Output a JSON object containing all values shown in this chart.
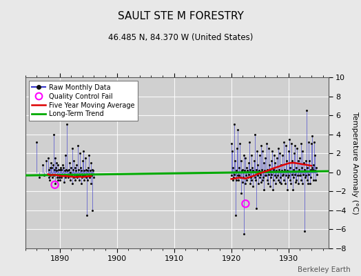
{
  "title": "SAULT STE M FORESTRY",
  "subtitle": "46.485 N, 84.370 W (United States)",
  "ylabel": "Temperature Anomaly (°C)",
  "watermark": "Berkeley Earth",
  "xlim": [
    1884,
    1937
  ],
  "ylim": [
    -8,
    10
  ],
  "yticks": [
    -8,
    -6,
    -4,
    -2,
    0,
    2,
    4,
    6,
    8,
    10
  ],
  "xticks": [
    1890,
    1900,
    1910,
    1920,
    1930
  ],
  "bg_color": "#e8e8e8",
  "plot_bg_color": "#d0d0d0",
  "raw_color": "#3333cc",
  "raw_color_alpha": 0.6,
  "raw_dot_color": "#111111",
  "moving_avg_color": "#dd0000",
  "trend_color": "#00aa00",
  "qc_fail_color": "#ff00ff",
  "raw_data_1": [
    [
      1886.0,
      3.2
    ],
    [
      1886.5,
      -0.5
    ],
    [
      1887.0,
      0.8
    ],
    [
      1887.3,
      -0.3
    ],
    [
      1887.6,
      1.2
    ],
    [
      1888.0,
      1.5
    ],
    [
      1888.08,
      -0.5
    ],
    [
      1888.17,
      0.3
    ],
    [
      1888.25,
      -0.8
    ],
    [
      1888.33,
      0.5
    ],
    [
      1888.42,
      -0.3
    ],
    [
      1888.5,
      1.0
    ],
    [
      1888.58,
      -0.2
    ],
    [
      1888.67,
      0.5
    ],
    [
      1888.75,
      -0.5
    ],
    [
      1888.83,
      0.8
    ],
    [
      1888.92,
      -0.3
    ],
    [
      1889.0,
      4.0
    ],
    [
      1889.08,
      0.3
    ],
    [
      1889.17,
      1.5
    ],
    [
      1889.25,
      -1.2
    ],
    [
      1889.33,
      0.5
    ],
    [
      1889.42,
      0.2
    ],
    [
      1889.5,
      1.0
    ],
    [
      1889.58,
      -0.5
    ],
    [
      1889.67,
      0.8
    ],
    [
      1889.75,
      -0.8
    ],
    [
      1889.83,
      0.3
    ],
    [
      1889.92,
      -0.5
    ],
    [
      1890.0,
      0.3
    ],
    [
      1890.08,
      -0.8
    ],
    [
      1890.17,
      0.5
    ],
    [
      1890.25,
      -0.5
    ],
    [
      1890.33,
      0.3
    ],
    [
      1890.42,
      -0.3
    ],
    [
      1890.5,
      0.8
    ],
    [
      1890.58,
      -0.2
    ],
    [
      1890.67,
      0.5
    ],
    [
      1890.75,
      -0.3
    ],
    [
      1890.83,
      -1.0
    ],
    [
      1890.92,
      0.2
    ],
    [
      1891.0,
      1.8
    ],
    [
      1891.08,
      -0.5
    ],
    [
      1891.17,
      0.3
    ],
    [
      1891.25,
      5.1
    ],
    [
      1891.33,
      -0.3
    ],
    [
      1891.42,
      0.2
    ],
    [
      1891.5,
      -0.5
    ],
    [
      1891.58,
      0.3
    ],
    [
      1891.67,
      -0.2
    ],
    [
      1891.75,
      1.0
    ],
    [
      1891.83,
      -0.8
    ],
    [
      1891.92,
      0.0
    ],
    [
      1892.0,
      0.5
    ],
    [
      1892.08,
      -0.3
    ],
    [
      1892.17,
      2.5
    ],
    [
      1892.25,
      -1.2
    ],
    [
      1892.33,
      0.3
    ],
    [
      1892.42,
      -0.5
    ],
    [
      1892.5,
      1.2
    ],
    [
      1892.58,
      -0.2
    ],
    [
      1892.67,
      0.5
    ],
    [
      1892.75,
      -0.8
    ],
    [
      1892.83,
      0.2
    ],
    [
      1892.92,
      -0.3
    ],
    [
      1893.0,
      0.8
    ],
    [
      1893.08,
      -0.5
    ],
    [
      1893.17,
      2.8
    ],
    [
      1893.25,
      -0.3
    ],
    [
      1893.33,
      0.3
    ],
    [
      1893.42,
      -0.8
    ],
    [
      1893.5,
      2.0
    ],
    [
      1893.58,
      -0.3
    ],
    [
      1893.67,
      0.5
    ],
    [
      1893.75,
      -1.2
    ],
    [
      1893.83,
      0.2
    ],
    [
      1893.92,
      -0.5
    ],
    [
      1894.0,
      1.2
    ],
    [
      1894.08,
      -0.3
    ],
    [
      1894.17,
      2.2
    ],
    [
      1894.25,
      -0.8
    ],
    [
      1894.33,
      0.2
    ],
    [
      1894.42,
      -0.3
    ],
    [
      1894.5,
      1.5
    ],
    [
      1894.58,
      -0.5
    ],
    [
      1894.67,
      0.3
    ],
    [
      1894.75,
      -4.5
    ],
    [
      1894.83,
      0.2
    ],
    [
      1894.92,
      -0.8
    ],
    [
      1895.0,
      0.5
    ],
    [
      1895.08,
      -0.3
    ],
    [
      1895.17,
      1.8
    ],
    [
      1895.25,
      -0.5
    ],
    [
      1895.33,
      0.2
    ],
    [
      1895.42,
      -1.2
    ],
    [
      1895.5,
      1.0
    ],
    [
      1895.58,
      -0.3
    ],
    [
      1895.67,
      0.3
    ],
    [
      1895.75,
      -4.0
    ],
    [
      1895.83,
      0.2
    ],
    [
      1895.92,
      -0.5
    ]
  ],
  "raw_data_2": [
    [
      1920.0,
      3.0
    ],
    [
      1920.08,
      -0.3
    ],
    [
      1920.17,
      2.2
    ],
    [
      1920.25,
      -0.8
    ],
    [
      1920.33,
      0.5
    ],
    [
      1920.42,
      -0.5
    ],
    [
      1920.5,
      5.1
    ],
    [
      1920.58,
      -0.2
    ],
    [
      1920.67,
      1.2
    ],
    [
      1920.75,
      -4.5
    ],
    [
      1920.83,
      0.2
    ],
    [
      1920.92,
      -0.8
    ],
    [
      1921.0,
      2.5
    ],
    [
      1921.08,
      -0.3
    ],
    [
      1921.17,
      4.5
    ],
    [
      1921.25,
      -0.8
    ],
    [
      1921.33,
      0.5
    ],
    [
      1921.42,
      -0.3
    ],
    [
      1921.5,
      3.0
    ],
    [
      1921.58,
      -0.5
    ],
    [
      1921.67,
      1.2
    ],
    [
      1921.75,
      -2.2
    ],
    [
      1921.83,
      0.2
    ],
    [
      1921.92,
      -1.0
    ],
    [
      1922.0,
      0.3
    ],
    [
      1922.08,
      -0.5
    ],
    [
      1922.17,
      1.8
    ],
    [
      1922.25,
      -6.5
    ],
    [
      1922.33,
      0.2
    ],
    [
      1922.42,
      -1.2
    ],
    [
      1922.5,
      1.5
    ],
    [
      1922.58,
      -0.3
    ],
    [
      1922.67,
      0.5
    ],
    [
      1922.75,
      -0.8
    ],
    [
      1922.83,
      0.2
    ],
    [
      1922.92,
      -0.5
    ],
    [
      1923.0,
      1.0
    ],
    [
      1923.08,
      -0.2
    ],
    [
      1923.17,
      3.2
    ],
    [
      1923.25,
      -1.2
    ],
    [
      1923.33,
      0.3
    ],
    [
      1923.42,
      -0.5
    ],
    [
      1923.5,
      1.8
    ],
    [
      1923.58,
      -0.8
    ],
    [
      1923.67,
      0.5
    ],
    [
      1923.75,
      -1.5
    ],
    [
      1923.83,
      0.2
    ],
    [
      1923.92,
      -0.3
    ],
    [
      1924.0,
      1.2
    ],
    [
      1924.08,
      -0.5
    ],
    [
      1924.17,
      4.0
    ],
    [
      1924.25,
      -0.8
    ],
    [
      1924.33,
      0.3
    ],
    [
      1924.42,
      -3.8
    ],
    [
      1924.5,
      2.2
    ],
    [
      1924.58,
      -0.3
    ],
    [
      1924.67,
      0.8
    ],
    [
      1924.75,
      -1.2
    ],
    [
      1924.83,
      0.2
    ],
    [
      1924.92,
      -0.5
    ],
    [
      1925.0,
      1.8
    ],
    [
      1925.08,
      -0.2
    ],
    [
      1925.17,
      2.8
    ],
    [
      1925.25,
      -1.0
    ],
    [
      1925.33,
      0.3
    ],
    [
      1925.42,
      -0.8
    ],
    [
      1925.5,
      2.2
    ],
    [
      1925.58,
      -0.5
    ],
    [
      1925.67,
      1.0
    ],
    [
      1925.75,
      -1.8
    ],
    [
      1925.83,
      0.2
    ],
    [
      1925.92,
      -0.3
    ],
    [
      1926.0,
      1.5
    ],
    [
      1926.08,
      -0.3
    ],
    [
      1926.17,
      3.0
    ],
    [
      1926.25,
      -0.8
    ],
    [
      1926.33,
      0.3
    ],
    [
      1926.42,
      -1.2
    ],
    [
      1926.5,
      2.5
    ],
    [
      1926.58,
      -0.2
    ],
    [
      1926.67,
      0.8
    ],
    [
      1926.75,
      -1.5
    ],
    [
      1926.83,
      0.2
    ],
    [
      1926.92,
      -0.5
    ],
    [
      1927.0,
      1.2
    ],
    [
      1927.08,
      -0.2
    ],
    [
      1927.17,
      2.2
    ],
    [
      1927.25,
      -1.8
    ],
    [
      1927.33,
      0.3
    ],
    [
      1927.42,
      -0.8
    ],
    [
      1927.5,
      1.8
    ],
    [
      1927.58,
      -0.3
    ],
    [
      1927.67,
      1.0
    ],
    [
      1927.75,
      -1.2
    ],
    [
      1927.83,
      0.2
    ],
    [
      1927.92,
      -0.5
    ],
    [
      1928.0,
      1.5
    ],
    [
      1928.08,
      -0.3
    ],
    [
      1928.17,
      2.5
    ],
    [
      1928.25,
      -0.8
    ],
    [
      1928.33,
      0.3
    ],
    [
      1928.42,
      -1.0
    ],
    [
      1928.5,
      2.0
    ],
    [
      1928.58,
      -0.5
    ],
    [
      1928.67,
      0.8
    ],
    [
      1928.75,
      -1.2
    ],
    [
      1928.83,
      0.2
    ],
    [
      1928.92,
      -0.3
    ],
    [
      1929.0,
      1.8
    ],
    [
      1929.08,
      -0.2
    ],
    [
      1929.17,
      3.2
    ],
    [
      1929.25,
      -0.8
    ],
    [
      1929.33,
      0.3
    ],
    [
      1929.42,
      -1.2
    ],
    [
      1929.5,
      2.8
    ],
    [
      1929.58,
      -0.3
    ],
    [
      1929.67,
      1.2
    ],
    [
      1929.75,
      -1.8
    ],
    [
      1929.83,
      0.2
    ],
    [
      1929.92,
      -0.5
    ],
    [
      1930.0,
      2.2
    ],
    [
      1930.08,
      -0.3
    ],
    [
      1930.17,
      3.5
    ],
    [
      1930.25,
      -0.8
    ],
    [
      1930.33,
      0.5
    ],
    [
      1930.42,
      -1.2
    ],
    [
      1930.5,
      3.0
    ],
    [
      1930.58,
      -0.2
    ],
    [
      1930.67,
      1.2
    ],
    [
      1930.75,
      -1.8
    ],
    [
      1930.83,
      0.3
    ],
    [
      1930.92,
      -0.5
    ],
    [
      1931.0,
      2.0
    ],
    [
      1931.08,
      -0.2
    ],
    [
      1931.17,
      2.8
    ],
    [
      1931.25,
      -1.0
    ],
    [
      1931.33,
      0.5
    ],
    [
      1931.42,
      -0.8
    ],
    [
      1931.5,
      2.5
    ],
    [
      1931.58,
      -0.3
    ],
    [
      1931.67,
      1.2
    ],
    [
      1931.75,
      -1.2
    ],
    [
      1931.83,
      0.3
    ],
    [
      1931.92,
      -0.3
    ],
    [
      1932.0,
      1.5
    ],
    [
      1932.08,
      -0.3
    ],
    [
      1932.17,
      3.0
    ],
    [
      1932.25,
      -0.8
    ],
    [
      1932.33,
      0.5
    ],
    [
      1932.42,
      -1.2
    ],
    [
      1932.5,
      2.2
    ],
    [
      1932.58,
      -0.2
    ],
    [
      1932.67,
      1.0
    ],
    [
      1932.75,
      -6.2
    ],
    [
      1932.83,
      0.3
    ],
    [
      1932.92,
      -0.5
    ],
    [
      1933.0,
      1.2
    ],
    [
      1933.08,
      -0.3
    ],
    [
      1933.17,
      6.5
    ],
    [
      1933.25,
      -0.8
    ],
    [
      1933.33,
      0.5
    ],
    [
      1933.42,
      -1.2
    ],
    [
      1933.5,
      3.2
    ],
    [
      1933.58,
      -0.2
    ],
    [
      1933.67,
      1.2
    ],
    [
      1933.75,
      -1.2
    ],
    [
      1933.83,
      0.3
    ],
    [
      1933.92,
      -0.5
    ],
    [
      1934.0,
      3.0
    ],
    [
      1934.08,
      0.5
    ],
    [
      1934.17,
      3.8
    ],
    [
      1934.25,
      0.3
    ],
    [
      1934.33,
      0.8
    ],
    [
      1934.42,
      -0.8
    ],
    [
      1934.5,
      3.2
    ],
    [
      1934.58,
      0.2
    ],
    [
      1934.67,
      1.8
    ],
    [
      1934.75,
      -0.8
    ],
    [
      1934.83,
      0.5
    ],
    [
      1934.92,
      -0.2
    ]
  ],
  "qc_fail_points": [
    [
      1889.17,
      -1.3
    ],
    [
      1922.5,
      -3.3
    ]
  ],
  "moving_avg_1_x": [
    1888.0,
    1888.5,
    1889.0,
    1889.5,
    1890.0,
    1890.5,
    1891.0,
    1891.5,
    1892.0,
    1892.5,
    1893.0,
    1893.5,
    1894.0,
    1894.5,
    1895.0,
    1895.5
  ],
  "moving_avg_1_y": [
    -0.2,
    -0.3,
    -0.25,
    -0.3,
    -0.35,
    -0.4,
    -0.38,
    -0.42,
    -0.45,
    -0.48,
    -0.5,
    -0.45,
    -0.5,
    -0.45,
    -0.42,
    -0.4
  ],
  "moving_avg_2_x": [
    1920.0,
    1920.5,
    1921.0,
    1921.5,
    1922.0,
    1922.5,
    1923.0,
    1923.5,
    1924.0,
    1924.5,
    1925.0,
    1925.5,
    1926.0,
    1926.5,
    1927.0,
    1927.5,
    1928.0,
    1928.5,
    1929.0,
    1929.5,
    1930.0,
    1930.5,
    1931.0,
    1931.5,
    1932.0,
    1932.5,
    1933.0,
    1933.5,
    1934.0
  ],
  "moving_avg_2_y": [
    -0.7,
    -0.65,
    -0.6,
    -0.55,
    -0.6,
    -0.65,
    -0.55,
    -0.45,
    -0.35,
    -0.2,
    -0.1,
    0.0,
    0.1,
    0.2,
    0.35,
    0.45,
    0.55,
    0.65,
    0.75,
    0.85,
    0.95,
    1.0,
    1.0,
    0.95,
    0.9,
    0.85,
    0.8,
    0.75,
    0.7
  ],
  "trend_x": [
    1884,
    1937
  ],
  "trend_y": [
    -0.32,
    0.12
  ]
}
